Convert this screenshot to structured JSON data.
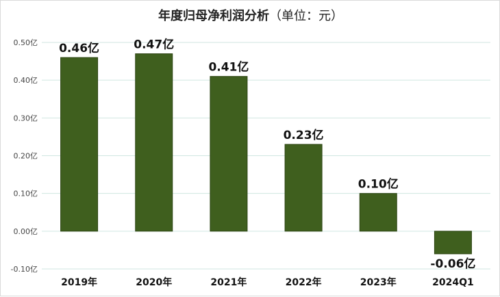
{
  "chart_data": {
    "type": "bar",
    "title": "年度归母净利润分析",
    "unit_label": "（单位：元）",
    "categories": [
      "2019年",
      "2020年",
      "2021年",
      "2022年",
      "2023年",
      "2024Q1"
    ],
    "values": [
      0.46,
      0.47,
      0.41,
      0.23,
      0.1,
      -0.06
    ],
    "data_labels": [
      "0.46亿",
      "0.47亿",
      "0.41亿",
      "0.23亿",
      "0.10亿",
      "-0.06亿"
    ],
    "yticks": [
      -0.1,
      0.0,
      0.1,
      0.2,
      0.3,
      0.4,
      0.5
    ],
    "ytick_labels": [
      "-0.10亿",
      "0.00亿",
      "0.10亿",
      "0.20亿",
      "0.30亿",
      "0.40亿",
      "0.50亿"
    ],
    "ylim": [
      -0.1,
      0.5
    ],
    "grid": true,
    "legend": "none",
    "colors": {
      "bar": "#3f5f1e",
      "bar_edge": "#2c4412",
      "grid": "#cfe6e0"
    }
  }
}
